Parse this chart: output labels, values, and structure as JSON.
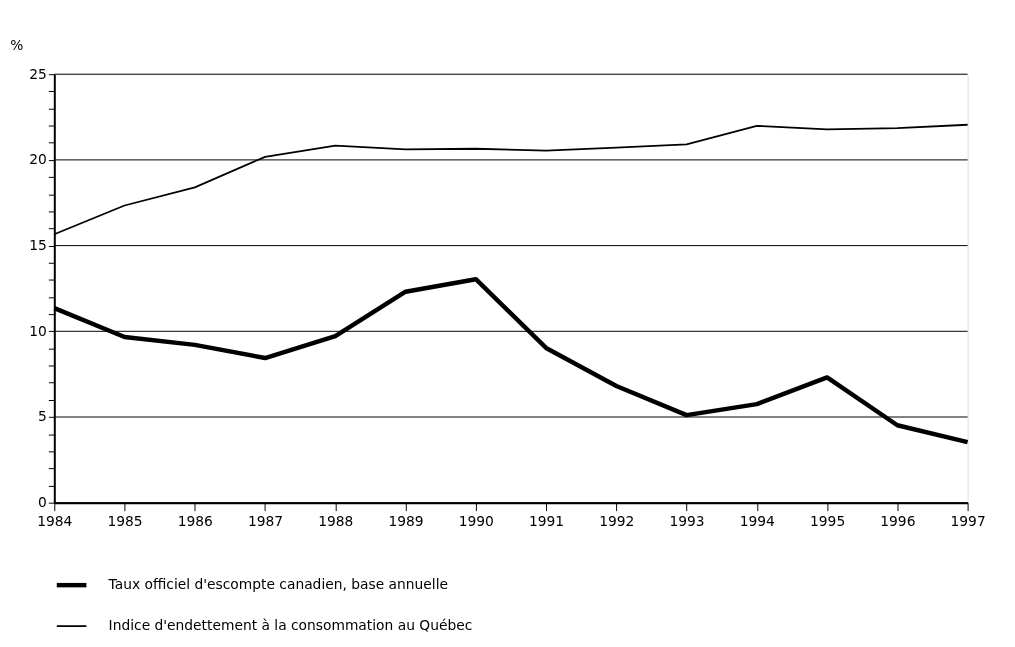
{
  "chart_data": {
    "type": "line",
    "ylabel": "%",
    "x": [
      1984,
      1985,
      1986,
      1987,
      1988,
      1989,
      1990,
      1991,
      1992,
      1993,
      1994,
      1995,
      1996,
      1997
    ],
    "series": [
      {
        "name": "Taux officiel d'escompte canadien, base annuelle",
        "color": "#000000",
        "values": [
          11.35,
          9.67,
          9.21,
          8.44,
          9.72,
          12.31,
          13.04,
          9.03,
          6.81,
          5.11,
          5.75,
          7.31,
          4.52,
          3.53
        ]
      },
      {
        "name": "Indice d'endettement à la consommation au Québec",
        "color": "#000000",
        "values": [
          15.66,
          17.34,
          18.4,
          20.18,
          20.83,
          20.62,
          20.65,
          20.54,
          20.72,
          20.9,
          21.99,
          21.78,
          21.86,
          22.05
        ]
      }
    ],
    "xlim": [
      1984,
      1997
    ],
    "xticks": [
      1984,
      1985,
      1986,
      1987,
      1988,
      1989,
      1990,
      1991,
      1992,
      1993,
      1994,
      1995,
      1996,
      1997
    ],
    "ylim": [
      0,
      25
    ],
    "yticks": [
      0,
      {
        "value": 1,
        "label": null
      },
      {
        "value": 2,
        "label": null
      },
      {
        "value": 3,
        "label": null
      },
      {
        "value": 4,
        "label": null
      },
      5,
      {
        "value": 6,
        "label": null
      },
      {
        "value": 7,
        "label": null
      },
      {
        "value": 8,
        "label": null
      },
      {
        "value": 9,
        "label": null
      },
      10,
      {
        "value": 11,
        "label": null
      },
      {
        "value": 12,
        "label": null
      },
      {
        "value": 13,
        "label": null
      },
      {
        "value": 14,
        "label": null
      },
      15,
      {
        "value": 16,
        "label": null
      },
      {
        "value": 17,
        "label": null
      },
      {
        "value": 18,
        "label": null
      },
      {
        "value": 19,
        "label": null
      },
      20,
      {
        "value": 21,
        "label": null
      },
      {
        "value": 22,
        "label": null
      },
      {
        "value": 23,
        "label": null
      },
      {
        "value": 24,
        "label": null
      },
      25
    ],
    "grid": "y",
    "legend": "bottom",
    "marker": "none",
    "line_style": "solid"
  }
}
